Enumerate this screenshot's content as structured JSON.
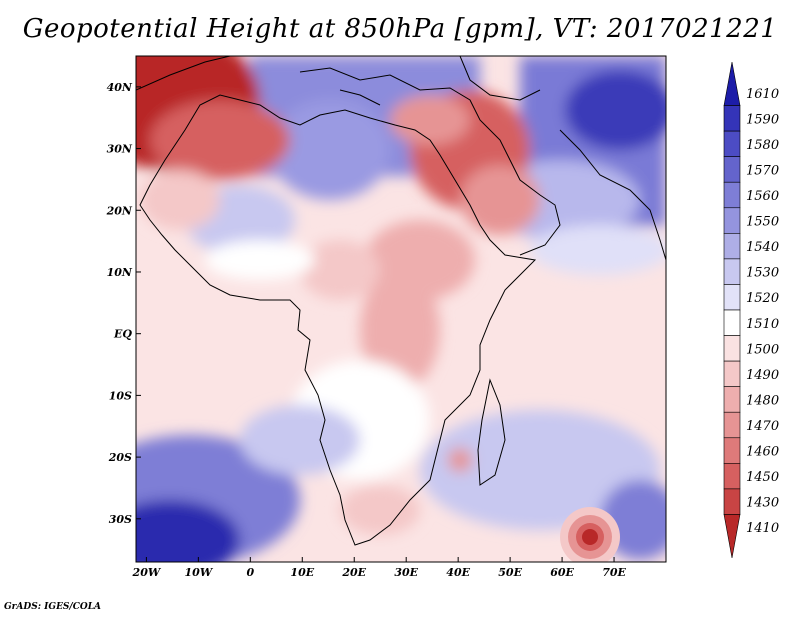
{
  "title": "Geopotential Height at 850hPa [gpm], VT: 2017021221",
  "credit": "GrADS: IGES/COLA",
  "map": {
    "lon_range": [
      -22,
      80
    ],
    "lat_range": [
      -37,
      45
    ],
    "lat_ticks": [
      "40N",
      "30N",
      "20N",
      "10N",
      "EQ",
      "10S",
      "20S",
      "30S"
    ],
    "lat_values": [
      40,
      30,
      20,
      10,
      0,
      -10,
      -20,
      -30
    ],
    "lon_ticks": [
      "20W",
      "10W",
      "0",
      "10E",
      "20E",
      "30E",
      "40E",
      "50E",
      "60E",
      "70E"
    ],
    "lon_values": [
      -20,
      -10,
      0,
      10,
      20,
      30,
      40,
      50,
      60,
      70
    ]
  },
  "colorbar": {
    "labels": [
      "1610",
      "1590",
      "1580",
      "1570",
      "1560",
      "1550",
      "1540",
      "1530",
      "1520",
      "1510",
      "1500",
      "1490",
      "1480",
      "1470",
      "1460",
      "1450",
      "1430",
      "1410"
    ],
    "colors": [
      "#1c1ca8",
      "#3434b8",
      "#4c4cc4",
      "#6464cc",
      "#7e7ed6",
      "#9494de",
      "#aeaee6",
      "#c8c8f0",
      "#e2e2f8",
      "#ffffff",
      "#fae2e2",
      "#f4c8c8",
      "#eeaeae",
      "#e69494",
      "#de7a7a",
      "#d66060",
      "#c84444",
      "#b82828"
    ]
  }
}
